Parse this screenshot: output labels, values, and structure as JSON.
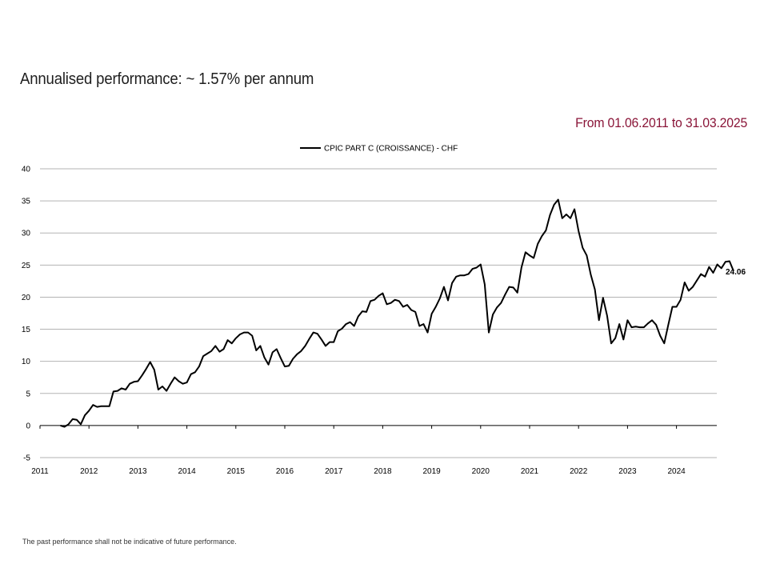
{
  "header": {
    "title": "Annualised performance: ~ 1.57% per annum",
    "period": "From 01.06.2011 to 31.03.2025"
  },
  "footer": {
    "disclaimer": "The past performance shall not be indicative of future performance."
  },
  "colors": {
    "line": "#000000",
    "grid": "#b3b3b3",
    "period_text": "#8a1538"
  },
  "chart_data": {
    "type": "line",
    "title": "",
    "xlabel": "",
    "ylabel": "",
    "ylim": [
      -5,
      40
    ],
    "yticks": [
      -5,
      0,
      5,
      10,
      15,
      20,
      25,
      30,
      35,
      40
    ],
    "xticks": [
      "2011",
      "2012",
      "2013",
      "2014",
      "2015",
      "2016",
      "2017",
      "2018",
      "2019",
      "2020",
      "2021",
      "2022",
      "2023",
      "2024"
    ],
    "grid": "horizontal",
    "legend": "top-center",
    "last_value_label": "24.06",
    "series": [
      {
        "name": "CPIC PART C (CROISSANCE) - CHF",
        "points": [
          [
            "2011-06",
            0.0
          ],
          [
            "2011-07",
            -0.2
          ],
          [
            "2011-08",
            0.2
          ],
          [
            "2011-09",
            1.0
          ],
          [
            "2011-10",
            0.9
          ],
          [
            "2011-11",
            0.2
          ],
          [
            "2011-12",
            1.6
          ],
          [
            "2012-01",
            2.3
          ],
          [
            "2012-02",
            3.2
          ],
          [
            "2012-03",
            2.9
          ],
          [
            "2012-04",
            3.0
          ],
          [
            "2012-05",
            3.0
          ],
          [
            "2012-06",
            3.0
          ],
          [
            "2012-07",
            5.3
          ],
          [
            "2012-08",
            5.4
          ],
          [
            "2012-09",
            5.8
          ],
          [
            "2012-10",
            5.6
          ],
          [
            "2012-11",
            6.5
          ],
          [
            "2012-12",
            6.8
          ],
          [
            "2013-01",
            6.9
          ],
          [
            "2013-02",
            7.8
          ],
          [
            "2013-03",
            8.8
          ],
          [
            "2013-04",
            9.9
          ],
          [
            "2013-05",
            8.7
          ],
          [
            "2013-06",
            5.6
          ],
          [
            "2013-07",
            6.1
          ],
          [
            "2013-08",
            5.4
          ],
          [
            "2013-09",
            6.5
          ],
          [
            "2013-10",
            7.5
          ],
          [
            "2013-11",
            6.9
          ],
          [
            "2013-12",
            6.5
          ],
          [
            "2014-01",
            6.7
          ],
          [
            "2014-02",
            8.0
          ],
          [
            "2014-03",
            8.3
          ],
          [
            "2014-04",
            9.2
          ],
          [
            "2014-05",
            10.8
          ],
          [
            "2014-06",
            11.2
          ],
          [
            "2014-07",
            11.6
          ],
          [
            "2014-08",
            12.4
          ],
          [
            "2014-09",
            11.5
          ],
          [
            "2014-10",
            11.9
          ],
          [
            "2014-11",
            13.3
          ],
          [
            "2014-12",
            12.8
          ],
          [
            "2015-01",
            13.6
          ],
          [
            "2015-02",
            14.2
          ],
          [
            "2015-03",
            14.5
          ],
          [
            "2015-04",
            14.5
          ],
          [
            "2015-05",
            14.0
          ],
          [
            "2015-06",
            11.7
          ],
          [
            "2015-07",
            12.4
          ],
          [
            "2015-08",
            10.6
          ],
          [
            "2015-09",
            9.5
          ],
          [
            "2015-10",
            11.4
          ],
          [
            "2015-11",
            11.9
          ],
          [
            "2015-12",
            10.5
          ],
          [
            "2016-01",
            9.2
          ],
          [
            "2016-02",
            9.3
          ],
          [
            "2016-03",
            10.4
          ],
          [
            "2016-04",
            11.1
          ],
          [
            "2016-05",
            11.6
          ],
          [
            "2016-06",
            12.4
          ],
          [
            "2016-07",
            13.5
          ],
          [
            "2016-08",
            14.5
          ],
          [
            "2016-09",
            14.3
          ],
          [
            "2016-10",
            13.4
          ],
          [
            "2016-11",
            12.4
          ],
          [
            "2016-12",
            13.0
          ],
          [
            "2017-01",
            13.0
          ],
          [
            "2017-02",
            14.7
          ],
          [
            "2017-03",
            15.1
          ],
          [
            "2017-04",
            15.8
          ],
          [
            "2017-05",
            16.1
          ],
          [
            "2017-06",
            15.5
          ],
          [
            "2017-07",
            17.0
          ],
          [
            "2017-08",
            17.8
          ],
          [
            "2017-09",
            17.7
          ],
          [
            "2017-10",
            19.4
          ],
          [
            "2017-11",
            19.6
          ],
          [
            "2017-12",
            20.2
          ],
          [
            "2018-01",
            20.6
          ],
          [
            "2018-02",
            18.9
          ],
          [
            "2018-03",
            19.1
          ],
          [
            "2018-04",
            19.6
          ],
          [
            "2018-05",
            19.4
          ],
          [
            "2018-06",
            18.5
          ],
          [
            "2018-07",
            18.8
          ],
          [
            "2018-08",
            18.0
          ],
          [
            "2018-09",
            17.7
          ],
          [
            "2018-10",
            15.5
          ],
          [
            "2018-11",
            15.8
          ],
          [
            "2018-12",
            14.5
          ],
          [
            "2019-01",
            17.4
          ],
          [
            "2019-02",
            18.5
          ],
          [
            "2019-03",
            19.8
          ],
          [
            "2019-04",
            21.6
          ],
          [
            "2019-05",
            19.5
          ],
          [
            "2019-06",
            22.2
          ],
          [
            "2019-07",
            23.2
          ],
          [
            "2019-08",
            23.4
          ],
          [
            "2019-09",
            23.4
          ],
          [
            "2019-10",
            23.6
          ],
          [
            "2019-11",
            24.4
          ],
          [
            "2019-12",
            24.6
          ],
          [
            "2020-01",
            25.1
          ],
          [
            "2020-02",
            22.0
          ],
          [
            "2020-03",
            14.5
          ],
          [
            "2020-04",
            17.3
          ],
          [
            "2020-05",
            18.4
          ],
          [
            "2020-06",
            19.1
          ],
          [
            "2020-07",
            20.4
          ],
          [
            "2020-08",
            21.6
          ],
          [
            "2020-09",
            21.5
          ],
          [
            "2020-10",
            20.7
          ],
          [
            "2020-11",
            24.6
          ],
          [
            "2020-12",
            27.0
          ],
          [
            "2021-01",
            26.5
          ],
          [
            "2021-02",
            26.1
          ],
          [
            "2021-03",
            28.3
          ],
          [
            "2021-04",
            29.5
          ],
          [
            "2021-05",
            30.4
          ],
          [
            "2021-06",
            32.8
          ],
          [
            "2021-07",
            34.4
          ],
          [
            "2021-08",
            35.2
          ],
          [
            "2021-09",
            32.3
          ],
          [
            "2021-10",
            32.9
          ],
          [
            "2021-11",
            32.3
          ],
          [
            "2021-12",
            33.7
          ],
          [
            "2022-01",
            30.3
          ],
          [
            "2022-02",
            27.7
          ],
          [
            "2022-03",
            26.5
          ],
          [
            "2022-04",
            23.5
          ],
          [
            "2022-05",
            21.2
          ],
          [
            "2022-06",
            16.4
          ],
          [
            "2022-07",
            19.9
          ],
          [
            "2022-08",
            17.1
          ],
          [
            "2022-09",
            12.8
          ],
          [
            "2022-10",
            13.6
          ],
          [
            "2022-11",
            15.8
          ],
          [
            "2022-12",
            13.4
          ],
          [
            "2023-01",
            16.4
          ],
          [
            "2023-02",
            15.3
          ],
          [
            "2023-03",
            15.4
          ],
          [
            "2023-04",
            15.3
          ],
          [
            "2023-05",
            15.3
          ],
          [
            "2023-06",
            15.9
          ],
          [
            "2023-07",
            16.4
          ],
          [
            "2023-08",
            15.7
          ],
          [
            "2023-09",
            14.0
          ],
          [
            "2023-10",
            12.8
          ],
          [
            "2023-11",
            15.7
          ],
          [
            "2023-12",
            18.5
          ],
          [
            "2024-01",
            18.5
          ],
          [
            "2024-02",
            19.6
          ],
          [
            "2024-03",
            22.3
          ],
          [
            "2024-04",
            21.0
          ],
          [
            "2024-05",
            21.6
          ],
          [
            "2024-06",
            22.6
          ],
          [
            "2024-07",
            23.6
          ],
          [
            "2024-08",
            23.2
          ],
          [
            "2024-09",
            24.7
          ],
          [
            "2024-10",
            23.8
          ],
          [
            "2024-11",
            25.1
          ],
          [
            "2024-12",
            24.5
          ],
          [
            "2025-01",
            25.5
          ],
          [
            "2025-02",
            25.6
          ],
          [
            "2025-03",
            24.06
          ]
        ]
      }
    ]
  }
}
